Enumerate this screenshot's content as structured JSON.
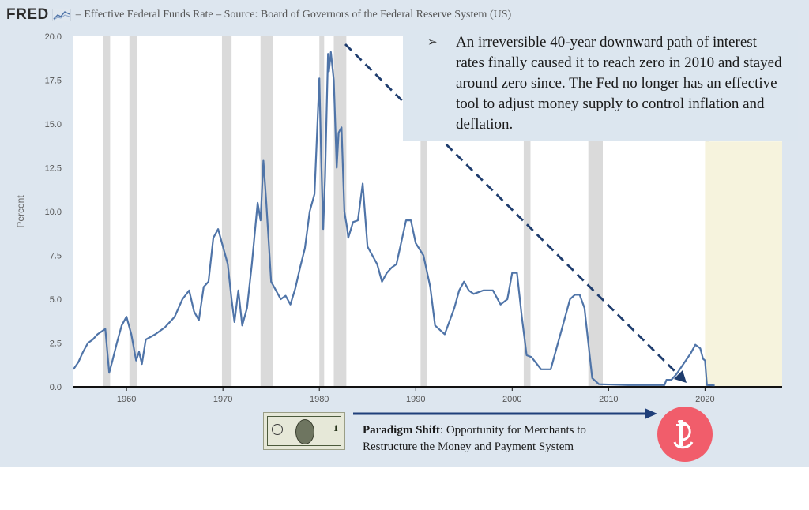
{
  "header": {
    "logo": "FRED",
    "title": "– Effective Federal Funds Rate – Source: Board of Governors of the Federal Reserve System (US)"
  },
  "callout": {
    "bullet": "➢",
    "text": "An irreversible 40-year downward path of interest rates finally caused it to reach zero in 2010 and stayed around zero since. The Fed no longer has an effective tool to adjust money supply to control inflation and deflation."
  },
  "footer": {
    "bold": "Paradigm Shift",
    "line1_rest": ": Opportunity for Merchants to",
    "line2": "Restructure the Money and Payment System"
  },
  "colors": {
    "line": "#4f74a8",
    "recession": "#dadada",
    "forecast": "#f6f3dd",
    "trend_arrow": "#1f3d6e",
    "shift_arrow": "#1f3f7a",
    "logo": "#f15d6b"
  },
  "chart_data": {
    "type": "line",
    "title": "Effective Federal Funds Rate",
    "xlabel": "",
    "ylabel": "Percent",
    "xlim": [
      1954.5,
      2028
    ],
    "ylim": [
      0,
      20
    ],
    "yticks": [
      "0.0",
      "2.5",
      "5.0",
      "7.5",
      "10.0",
      "12.5",
      "15.0",
      "17.5",
      "20.0"
    ],
    "xticks": [
      "1960",
      "1970",
      "1980",
      "1990",
      "2000",
      "2010",
      "2020"
    ],
    "grid": false,
    "series": [
      {
        "x": [
          1954.5,
          1955.0,
          1955.5,
          1956.0,
          1956.5,
          1957.0,
          1957.8,
          1958.2,
          1958.5,
          1959.0,
          1959.5,
          1960.0,
          1960.5,
          1961.0,
          1961.3,
          1961.6,
          1962.0,
          1963.0,
          1964.0,
          1965.0,
          1965.8,
          1966.5,
          1967.0,
          1967.5,
          1968.0,
          1968.5,
          1969.0,
          1969.5,
          1970.0,
          1970.5,
          1970.9,
          1971.2,
          1971.6,
          1972.0,
          1972.5,
          1973.0,
          1973.6,
          1973.9,
          1974.2,
          1974.5,
          1975.0,
          1975.5,
          1976.0,
          1976.5,
          1977.0,
          1977.5,
          1978.0,
          1978.5,
          1979.0,
          1979.5,
          1980.0,
          1980.2,
          1980.4,
          1980.6,
          1980.9,
          1981.0,
          1981.2,
          1981.5,
          1981.8,
          1982.0,
          1982.3,
          1982.6,
          1982.9,
          1983.0,
          1983.5,
          1984.0,
          1984.5,
          1985.0,
          1986.0,
          1986.5,
          1987.0,
          1987.5,
          1988.0,
          1989.0,
          1989.5,
          1990.0,
          1990.8,
          1991.5,
          1992.0,
          1993.0,
          1994.0,
          1994.5,
          1995.0,
          1995.5,
          1996.0,
          1997.0,
          1998.0,
          1998.8,
          1999.5,
          2000.0,
          2000.5,
          2001.0,
          2001.5,
          2002.0,
          2003.0,
          2004.0,
          2004.5,
          2005.0,
          2006.0,
          2006.5,
          2007.0,
          2007.5,
          2008.0,
          2008.3,
          2008.9,
          2009.0,
          2012.0,
          2015.8,
          2016.0,
          2016.5,
          2017.0,
          2017.5,
          2018.0,
          2018.5,
          2019.0,
          2019.5,
          2019.8,
          2020.0,
          2020.2,
          2021.0
        ],
        "values": [
          1.0,
          1.4,
          2.0,
          2.5,
          2.7,
          3.0,
          3.3,
          0.8,
          1.4,
          2.5,
          3.5,
          4.0,
          3.0,
          1.5,
          2.0,
          1.3,
          2.7,
          3.0,
          3.4,
          4.0,
          5.0,
          5.5,
          4.3,
          3.8,
          5.7,
          6.0,
          8.5,
          9.0,
          8.0,
          7.0,
          5.0,
          3.7,
          5.5,
          3.5,
          4.5,
          7.0,
          10.5,
          9.5,
          12.9,
          10.5,
          6.0,
          5.5,
          5.0,
          5.2,
          4.7,
          5.6,
          6.8,
          7.9,
          10.0,
          11.0,
          17.6,
          13.0,
          9.0,
          12.0,
          19.0,
          18.0,
          19.1,
          17.5,
          12.5,
          14.5,
          14.8,
          10.0,
          9.0,
          8.5,
          9.4,
          9.5,
          11.6,
          8.0,
          7.0,
          6.0,
          6.5,
          6.8,
          7.0,
          9.5,
          9.5,
          8.2,
          7.5,
          5.7,
          3.5,
          3.0,
          4.5,
          5.5,
          6.0,
          5.5,
          5.3,
          5.5,
          5.5,
          4.7,
          5.0,
          6.5,
          6.5,
          4.0,
          1.8,
          1.7,
          1.0,
          1.0,
          2.0,
          3.0,
          5.0,
          5.25,
          5.25,
          4.5,
          2.0,
          0.5,
          0.2,
          0.15,
          0.1,
          0.1,
          0.4,
          0.4,
          0.7,
          1.1,
          1.5,
          1.9,
          2.4,
          2.2,
          1.6,
          1.5,
          0.1,
          0.08
        ]
      }
    ],
    "recessions": [
      [
        1957.6,
        1958.3
      ],
      [
        1960.3,
        1961.1
      ],
      [
        1969.9,
        1970.9
      ],
      [
        1973.9,
        1975.2
      ],
      [
        1980.0,
        1980.5
      ],
      [
        1981.5,
        1982.8
      ],
      [
        1990.5,
        1991.2
      ],
      [
        2001.2,
        2001.9
      ],
      [
        2007.9,
        2009.4
      ],
      [
        2020.1,
        2020.4
      ]
    ],
    "forecast_region": [
      2020.0,
      2028
    ]
  }
}
